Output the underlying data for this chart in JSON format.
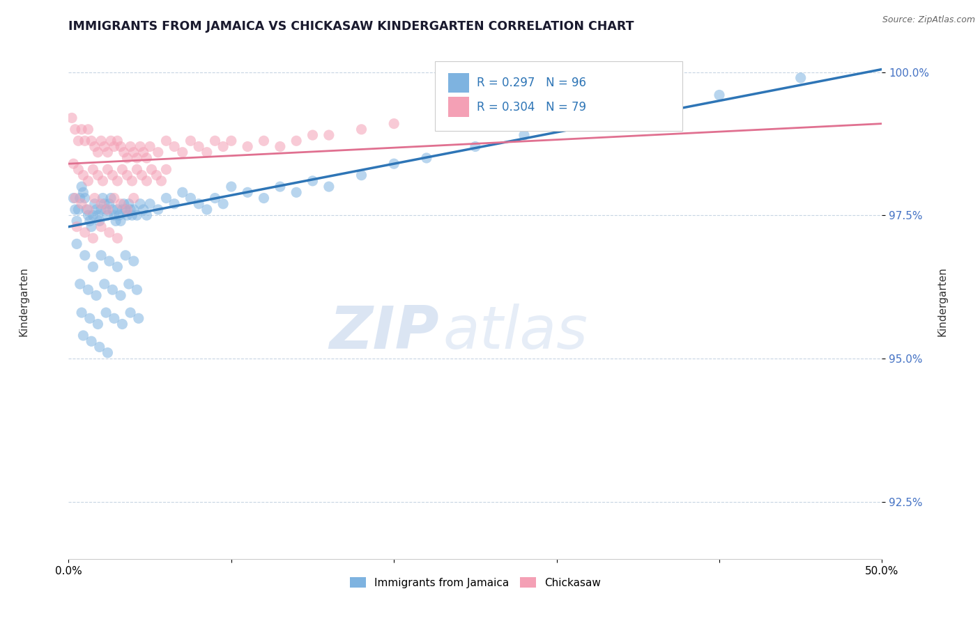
{
  "title": "IMMIGRANTS FROM JAMAICA VS CHICKASAW KINDERGARTEN CORRELATION CHART",
  "source_text": "Source: ZipAtlas.com",
  "ylabel": "Kindergarten",
  "xlim": [
    0.0,
    0.5
  ],
  "ylim": [
    0.915,
    1.005
  ],
  "yticks": [
    0.925,
    0.95,
    0.975,
    1.0
  ],
  "ytick_labels": [
    "92.5%",
    "95.0%",
    "97.5%",
    "100.0%"
  ],
  "xticks": [
    0.0,
    0.1,
    0.2,
    0.3,
    0.4,
    0.5
  ],
  "xtick_labels": [
    "0.0%",
    "",
    "",
    "",
    "",
    "50.0%"
  ],
  "blue_color": "#7eb3e0",
  "pink_color": "#f4a0b5",
  "trend_blue": "#2e75b6",
  "trend_pink": "#e07090",
  "legend_R_blue": "0.297",
  "legend_N_blue": "96",
  "legend_R_pink": "0.304",
  "legend_N_pink": "79",
  "legend_label_blue": "Immigrants from Jamaica",
  "legend_label_pink": "Chickasaw",
  "watermark_zip": "ZIP",
  "watermark_atlas": "atlas",
  "blue_trend_x0": 0.0,
  "blue_trend_y0": 0.973,
  "blue_trend_x1": 0.5,
  "blue_trend_y1": 1.0005,
  "pink_trend_x0": 0.0,
  "pink_trend_y0": 0.984,
  "pink_trend_x1": 0.5,
  "pink_trend_y1": 0.991,
  "blue_x": [
    0.003,
    0.004,
    0.005,
    0.006,
    0.007,
    0.008,
    0.009,
    0.01,
    0.011,
    0.012,
    0.013,
    0.014,
    0.015,
    0.016,
    0.017,
    0.018,
    0.019,
    0.02,
    0.021,
    0.022,
    0.023,
    0.024,
    0.025,
    0.026,
    0.027,
    0.028,
    0.029,
    0.03,
    0.031,
    0.032,
    0.033,
    0.034,
    0.035,
    0.036,
    0.037,
    0.038,
    0.039,
    0.04,
    0.042,
    0.044,
    0.046,
    0.048,
    0.05,
    0.055,
    0.06,
    0.065,
    0.07,
    0.075,
    0.08,
    0.085,
    0.09,
    0.095,
    0.1,
    0.11,
    0.12,
    0.13,
    0.14,
    0.15,
    0.16,
    0.18,
    0.2,
    0.22,
    0.25,
    0.28,
    0.32,
    0.35,
    0.4,
    0.45,
    0.005,
    0.01,
    0.015,
    0.02,
    0.025,
    0.03,
    0.035,
    0.04,
    0.007,
    0.012,
    0.017,
    0.022,
    0.027,
    0.032,
    0.037,
    0.042,
    0.008,
    0.013,
    0.018,
    0.023,
    0.028,
    0.033,
    0.038,
    0.043,
    0.009,
    0.014,
    0.019,
    0.024
  ],
  "blue_y": [
    0.978,
    0.976,
    0.974,
    0.976,
    0.978,
    0.98,
    0.979,
    0.978,
    0.976,
    0.975,
    0.974,
    0.973,
    0.975,
    0.977,
    0.976,
    0.975,
    0.974,
    0.976,
    0.978,
    0.977,
    0.976,
    0.975,
    0.977,
    0.978,
    0.976,
    0.975,
    0.974,
    0.976,
    0.975,
    0.974,
    0.976,
    0.977,
    0.976,
    0.975,
    0.977,
    0.976,
    0.975,
    0.976,
    0.975,
    0.977,
    0.976,
    0.975,
    0.977,
    0.976,
    0.978,
    0.977,
    0.979,
    0.978,
    0.977,
    0.976,
    0.978,
    0.977,
    0.98,
    0.979,
    0.978,
    0.98,
    0.979,
    0.981,
    0.98,
    0.982,
    0.984,
    0.985,
    0.987,
    0.989,
    0.991,
    0.993,
    0.996,
    0.999,
    0.97,
    0.968,
    0.966,
    0.968,
    0.967,
    0.966,
    0.968,
    0.967,
    0.963,
    0.962,
    0.961,
    0.963,
    0.962,
    0.961,
    0.963,
    0.962,
    0.958,
    0.957,
    0.956,
    0.958,
    0.957,
    0.956,
    0.958,
    0.957,
    0.954,
    0.953,
    0.952,
    0.951
  ],
  "pink_x": [
    0.002,
    0.004,
    0.006,
    0.008,
    0.01,
    0.012,
    0.014,
    0.016,
    0.018,
    0.02,
    0.022,
    0.024,
    0.026,
    0.028,
    0.03,
    0.032,
    0.034,
    0.036,
    0.038,
    0.04,
    0.042,
    0.044,
    0.046,
    0.048,
    0.05,
    0.055,
    0.06,
    0.065,
    0.07,
    0.075,
    0.08,
    0.085,
    0.09,
    0.095,
    0.1,
    0.11,
    0.12,
    0.13,
    0.14,
    0.15,
    0.003,
    0.006,
    0.009,
    0.012,
    0.015,
    0.018,
    0.021,
    0.024,
    0.027,
    0.03,
    0.033,
    0.036,
    0.039,
    0.042,
    0.045,
    0.048,
    0.051,
    0.054,
    0.057,
    0.06,
    0.004,
    0.008,
    0.012,
    0.016,
    0.02,
    0.024,
    0.028,
    0.032,
    0.036,
    0.04,
    0.005,
    0.01,
    0.015,
    0.02,
    0.025,
    0.03,
    0.16,
    0.18,
    0.2
  ],
  "pink_y": [
    0.992,
    0.99,
    0.988,
    0.99,
    0.988,
    0.99,
    0.988,
    0.987,
    0.986,
    0.988,
    0.987,
    0.986,
    0.988,
    0.987,
    0.988,
    0.987,
    0.986,
    0.985,
    0.987,
    0.986,
    0.985,
    0.987,
    0.986,
    0.985,
    0.987,
    0.986,
    0.988,
    0.987,
    0.986,
    0.988,
    0.987,
    0.986,
    0.988,
    0.987,
    0.988,
    0.987,
    0.988,
    0.987,
    0.988,
    0.989,
    0.984,
    0.983,
    0.982,
    0.981,
    0.983,
    0.982,
    0.981,
    0.983,
    0.982,
    0.981,
    0.983,
    0.982,
    0.981,
    0.983,
    0.982,
    0.981,
    0.983,
    0.982,
    0.981,
    0.983,
    0.978,
    0.977,
    0.976,
    0.978,
    0.977,
    0.976,
    0.978,
    0.977,
    0.976,
    0.978,
    0.973,
    0.972,
    0.971,
    0.973,
    0.972,
    0.971,
    0.989,
    0.99,
    0.991
  ]
}
